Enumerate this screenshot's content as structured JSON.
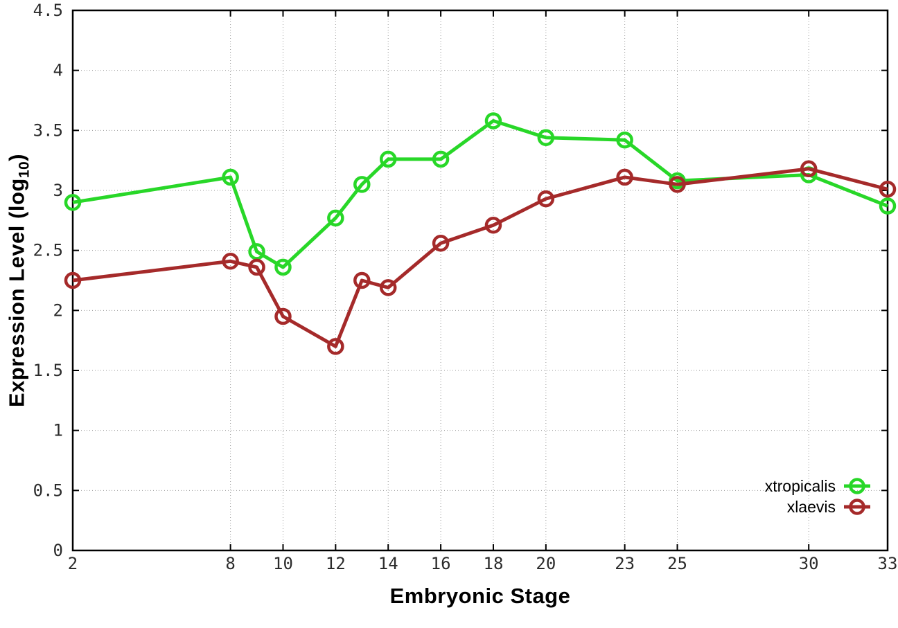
{
  "chart_data": {
    "type": "line",
    "title": "",
    "xlabel": "Embryonic Stage",
    "ylabel": "Expression Level (log10)",
    "ylabel_parts": {
      "prefix": "Expression Level (log",
      "sub": "10",
      "suffix": ")"
    },
    "x": [
      2,
      8,
      9,
      10,
      12,
      13,
      14,
      16,
      18,
      20,
      23,
      25,
      30,
      33
    ],
    "series": [
      {
        "name": "xtropicalis",
        "color": "#28d728",
        "values": [
          2.9,
          3.11,
          2.49,
          2.36,
          2.77,
          3.05,
          3.26,
          3.26,
          3.58,
          3.44,
          3.42,
          3.08,
          3.13,
          2.87
        ]
      },
      {
        "name": "xlaevis",
        "color": "#a52a2a",
        "values": [
          2.25,
          2.41,
          2.36,
          1.95,
          1.7,
          2.25,
          2.19,
          2.56,
          2.71,
          2.93,
          3.11,
          3.05,
          3.18,
          3.01
        ]
      }
    ],
    "xlim": [
      2,
      33
    ],
    "ylim": [
      0,
      4.5
    ],
    "xticks": [
      2,
      8,
      10,
      12,
      14,
      16,
      18,
      20,
      23,
      25,
      30,
      33
    ],
    "yticks": [
      0,
      0.5,
      1,
      1.5,
      2,
      2.5,
      3,
      3.5,
      4,
      4.5
    ],
    "ytick_labels": [
      "0",
      "0.5",
      "1",
      "1.5",
      "2",
      "2.5",
      "3",
      "3.5",
      "4",
      "4.5"
    ],
    "grid": true,
    "marker": "open-circle",
    "legend_position": "inside-bottom-right"
  },
  "legend": {
    "items": [
      {
        "label": "xtropicalis",
        "color": "#28d728"
      },
      {
        "label": "xlaevis",
        "color": "#a52a2a"
      }
    ]
  },
  "colors": {
    "xtropicalis_green": "#28d728",
    "xlaevis_red": "#a52a2a",
    "grid_gray": "#9a9a9a",
    "axis_black": "#000000",
    "tick_text": "#2b2b2b"
  }
}
